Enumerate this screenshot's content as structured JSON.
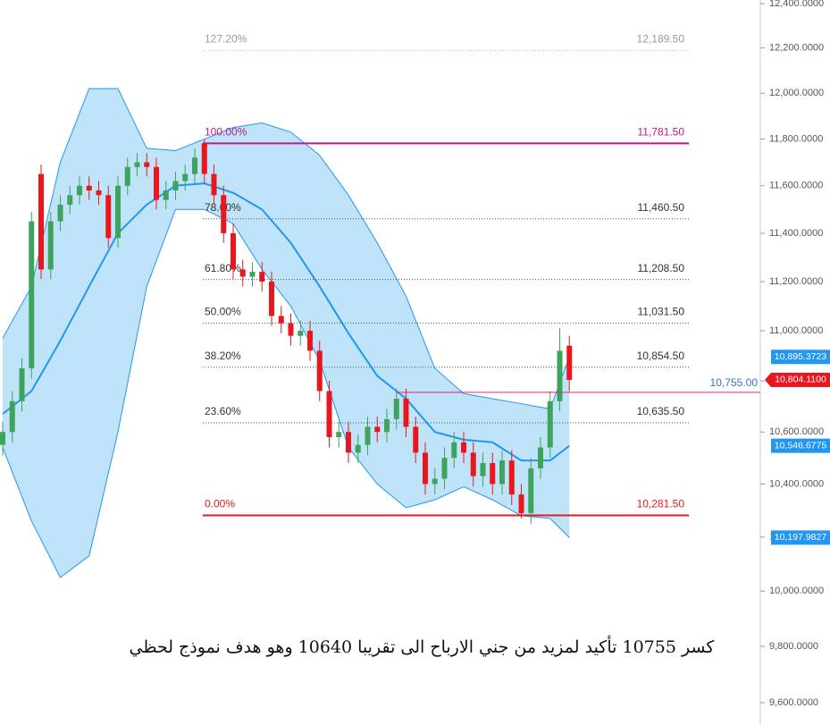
{
  "chart_data": {
    "type": "candlestick",
    "log_scale": true,
    "ylim": [
      9600,
      12400
    ],
    "yticks": [
      {
        "value": 9600,
        "label": "9,600.0000"
      },
      {
        "value": 9800,
        "label": "9,800.0000"
      },
      {
        "value": 10000,
        "label": "10,000.0000"
      },
      {
        "value": 10200,
        "label": "10,200.0000"
      },
      {
        "value": 10400,
        "label": "10,400.0000"
      },
      {
        "value": 10600,
        "label": "10,600.0000"
      },
      {
        "value": 10800,
        "label": "10,800.0000"
      },
      {
        "value": 11000,
        "label": "11,000.0000"
      },
      {
        "value": 11200,
        "label": "11,200.0000"
      },
      {
        "value": 11400,
        "label": "11,400.0000"
      },
      {
        "value": 11600,
        "label": "11,600.0000"
      },
      {
        "value": 11800,
        "label": "11,800.0000"
      },
      {
        "value": 12000,
        "label": "12,000.0000"
      },
      {
        "value": 12200,
        "label": "12,200.0000"
      },
      {
        "value": 12400,
        "label": "12,400.0000"
      }
    ],
    "up_color": "#3da35d",
    "down_color": "#e8171e",
    "open": [
      10550,
      10600,
      10720,
      10850,
      11650,
      11250,
      11450,
      11520,
      11560,
      11600,
      11580,
      11560,
      11380,
      11600,
      11680,
      11700,
      11680,
      11540,
      11580,
      11620,
      11650,
      11781.5,
      11650,
      11560,
      11400,
      11250,
      11220,
      11240,
      11200,
      11060,
      11030,
      10980,
      11000,
      10920,
      10760,
      10580,
      10600,
      10520,
      10550,
      10620,
      10600,
      10650,
      10730,
      10620,
      10520,
      10400,
      10420,
      10500,
      10560,
      10520,
      10430,
      10480,
      10400,
      10490,
      10360,
      10290,
      10460,
      10540,
      10720,
      10940
    ],
    "high": [
      10640,
      10760,
      10890,
      11490,
      11690,
      11490,
      11560,
      11600,
      11640,
      11640,
      11620,
      11600,
      11640,
      11720,
      11740,
      11740,
      11720,
      11620,
      11660,
      11690,
      11760,
      11800,
      11690,
      11600,
      11440,
      11290,
      11280,
      11280,
      11240,
      11100,
      11070,
      11040,
      11040,
      10960,
      10800,
      10640,
      10640,
      10590,
      10660,
      10660,
      10690,
      10770,
      10770,
      10660,
      10560,
      10460,
      10540,
      10600,
      10600,
      10560,
      10520,
      10520,
      10530,
      10530,
      10400,
      10500,
      10580,
      10760,
      11010,
      10980
    ],
    "low": [
      10510,
      10560,
      10680,
      10810,
      11210,
      11210,
      11410,
      11480,
      11520,
      11540,
      11520,
      11340,
      11340,
      11560,
      11640,
      11640,
      11500,
      11500,
      11540,
      11580,
      11610,
      11610,
      11520,
      11360,
      11210,
      11180,
      11180,
      11160,
      11020,
      10990,
      10940,
      10940,
      10880,
      10720,
      10540,
      10540,
      10480,
      10480,
      10510,
      10560,
      10560,
      10610,
      10580,
      10480,
      10360,
      10360,
      10380,
      10460,
      10480,
      10390,
      10390,
      10360,
      10360,
      10320,
      10270,
      10250,
      10420,
      10500,
      10680,
      10760
    ],
    "close": [
      10600,
      10720,
      10850,
      11450,
      11250,
      11450,
      11520,
      11560,
      11600,
      11580,
      11560,
      11380,
      11600,
      11680,
      11700,
      11680,
      11540,
      11580,
      11620,
      11650,
      11720,
      11650,
      11560,
      11400,
      11250,
      11220,
      11240,
      11200,
      11060,
      11030,
      10980,
      11000,
      10920,
      10760,
      10580,
      10600,
      10520,
      10550,
      10620,
      10600,
      10650,
      10730,
      10620,
      10520,
      10400,
      10420,
      10500,
      10560,
      10520,
      10430,
      10480,
      10400,
      10490,
      10360,
      10290,
      10460,
      10540,
      10720,
      10920,
      10804.11
    ],
    "band": {
      "index": [
        0,
        3,
        6,
        9,
        12,
        15,
        18,
        21,
        24,
        27,
        30,
        33,
        36,
        39,
        42,
        45,
        48,
        51,
        54,
        57,
        59
      ],
      "upper": [
        10970,
        11180,
        11700,
        12020,
        12020,
        11760,
        11750,
        11800,
        11850,
        11870,
        11830,
        11730,
        11560,
        11360,
        11140,
        10850,
        10750,
        10730,
        10710,
        10690,
        10895.3723
      ],
      "middle": [
        10670,
        10760,
        10960,
        11180,
        11400,
        11520,
        11600,
        11610,
        11570,
        11500,
        11360,
        11180,
        10990,
        10820,
        10730,
        10600,
        10570,
        10560,
        10490,
        10490,
        10546.6775
      ],
      "lower": [
        10540,
        10260,
        10050,
        10130,
        10600,
        11180,
        11500,
        11500,
        11440,
        11250,
        11100,
        10880,
        10540,
        10400,
        10310,
        10340,
        10390,
        10340,
        10280,
        10270,
        10197.9827
      ],
      "color": "#2196f3",
      "fill": "#bfe3f8"
    },
    "fib_levels": [
      {
        "percent": "127.20%",
        "value": 12189.5,
        "label": "12,189.50",
        "color": "#bbbbbb",
        "style": "dotted"
      },
      {
        "percent": "100.00%",
        "value": 11781.5,
        "label": "11,781.50",
        "color": "#c2188b",
        "style": "solid"
      },
      {
        "percent": "78.60%",
        "value": 11460.5,
        "label": "11,460.50",
        "color": "#555555",
        "style": "dotted"
      },
      {
        "percent": "61.80%",
        "value": 11208.5,
        "label": "11,208.50",
        "color": "#555555",
        "style": "dotted"
      },
      {
        "percent": "50.00%",
        "value": 11031.5,
        "label": "11,031.50",
        "color": "#555555",
        "style": "dotted"
      },
      {
        "percent": "38.20%",
        "value": 10854.5,
        "label": "10,854.50",
        "color": "#555555",
        "style": "dotted"
      },
      {
        "percent": "23.60%",
        "value": 10635.5,
        "label": "10,635.50",
        "color": "#555555",
        "style": "dotted"
      },
      {
        "percent": "0.00%",
        "value": 10281.5,
        "label": "10,281.50",
        "color": "#e8171e",
        "style": "solid"
      }
    ],
    "horizontal_line": {
      "value": 10755,
      "label": "10,755.00",
      "color": "#d6287f",
      "start_index": 41
    },
    "price_tags": [
      {
        "value": 10895.3723,
        "label": "10,895.3723",
        "color": "#2196f3"
      },
      {
        "value": 10804.11,
        "label": "10,804.1100",
        "color": "#e8171e"
      },
      {
        "value": 10546.6775,
        "label": "10,546.6775",
        "color": "#2196f3"
      },
      {
        "value": 10197.9827,
        "label": "10,197.9827",
        "color": "#2196f3"
      }
    ],
    "annotation": "كسر 10755 تأكيد لمزيد من جني الارباح الى تقريبا 10640 وهو هدف نموذج لحظي"
  }
}
